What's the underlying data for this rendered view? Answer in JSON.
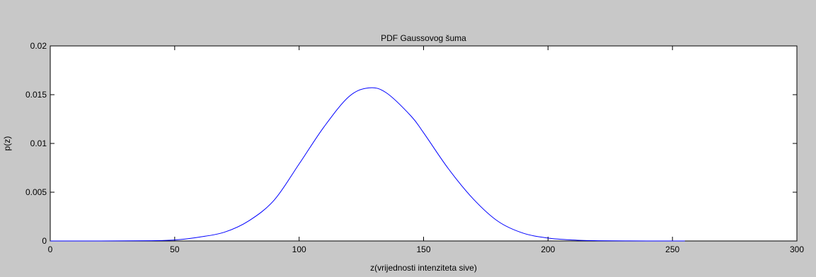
{
  "chart_data": {
    "type": "line",
    "title": "PDF Gaussovog šuma",
    "xlabel": "z(vrijednosti intenziteta sive)",
    "ylabel": "p(z)",
    "xlim": [
      0,
      300
    ],
    "ylim": [
      0,
      0.02
    ],
    "xticks": [
      0,
      50,
      100,
      150,
      200,
      250,
      300
    ],
    "xtick_labels": [
      "0",
      "50",
      "100",
      "150",
      "200",
      "250",
      "300"
    ],
    "yticks": [
      0,
      0.005,
      0.01,
      0.015,
      0.02
    ],
    "ytick_labels": [
      "0",
      "0.005",
      "0.01",
      "0.015",
      "0.02"
    ],
    "grid": false,
    "legend": "none",
    "series": [
      {
        "color": "#0000ff",
        "x": [
          0,
          20,
          40,
          50,
          60,
          70,
          80,
          90,
          100,
          110,
          120,
          128,
          135,
          145,
          150,
          160,
          170,
          180,
          190,
          200,
          210,
          220,
          240,
          255
        ],
        "y": [
          0.0,
          0.0,
          3e-05,
          0.0001,
          0.0004,
          0.0009,
          0.0021,
          0.0042,
          0.0079,
          0.0117,
          0.0148,
          0.0157,
          0.0152,
          0.0128,
          0.0111,
          0.0074,
          0.0043,
          0.002,
          0.0008,
          0.0003,
          0.0001,
          3e-05,
          0.0,
          0.0
        ]
      }
    ]
  }
}
